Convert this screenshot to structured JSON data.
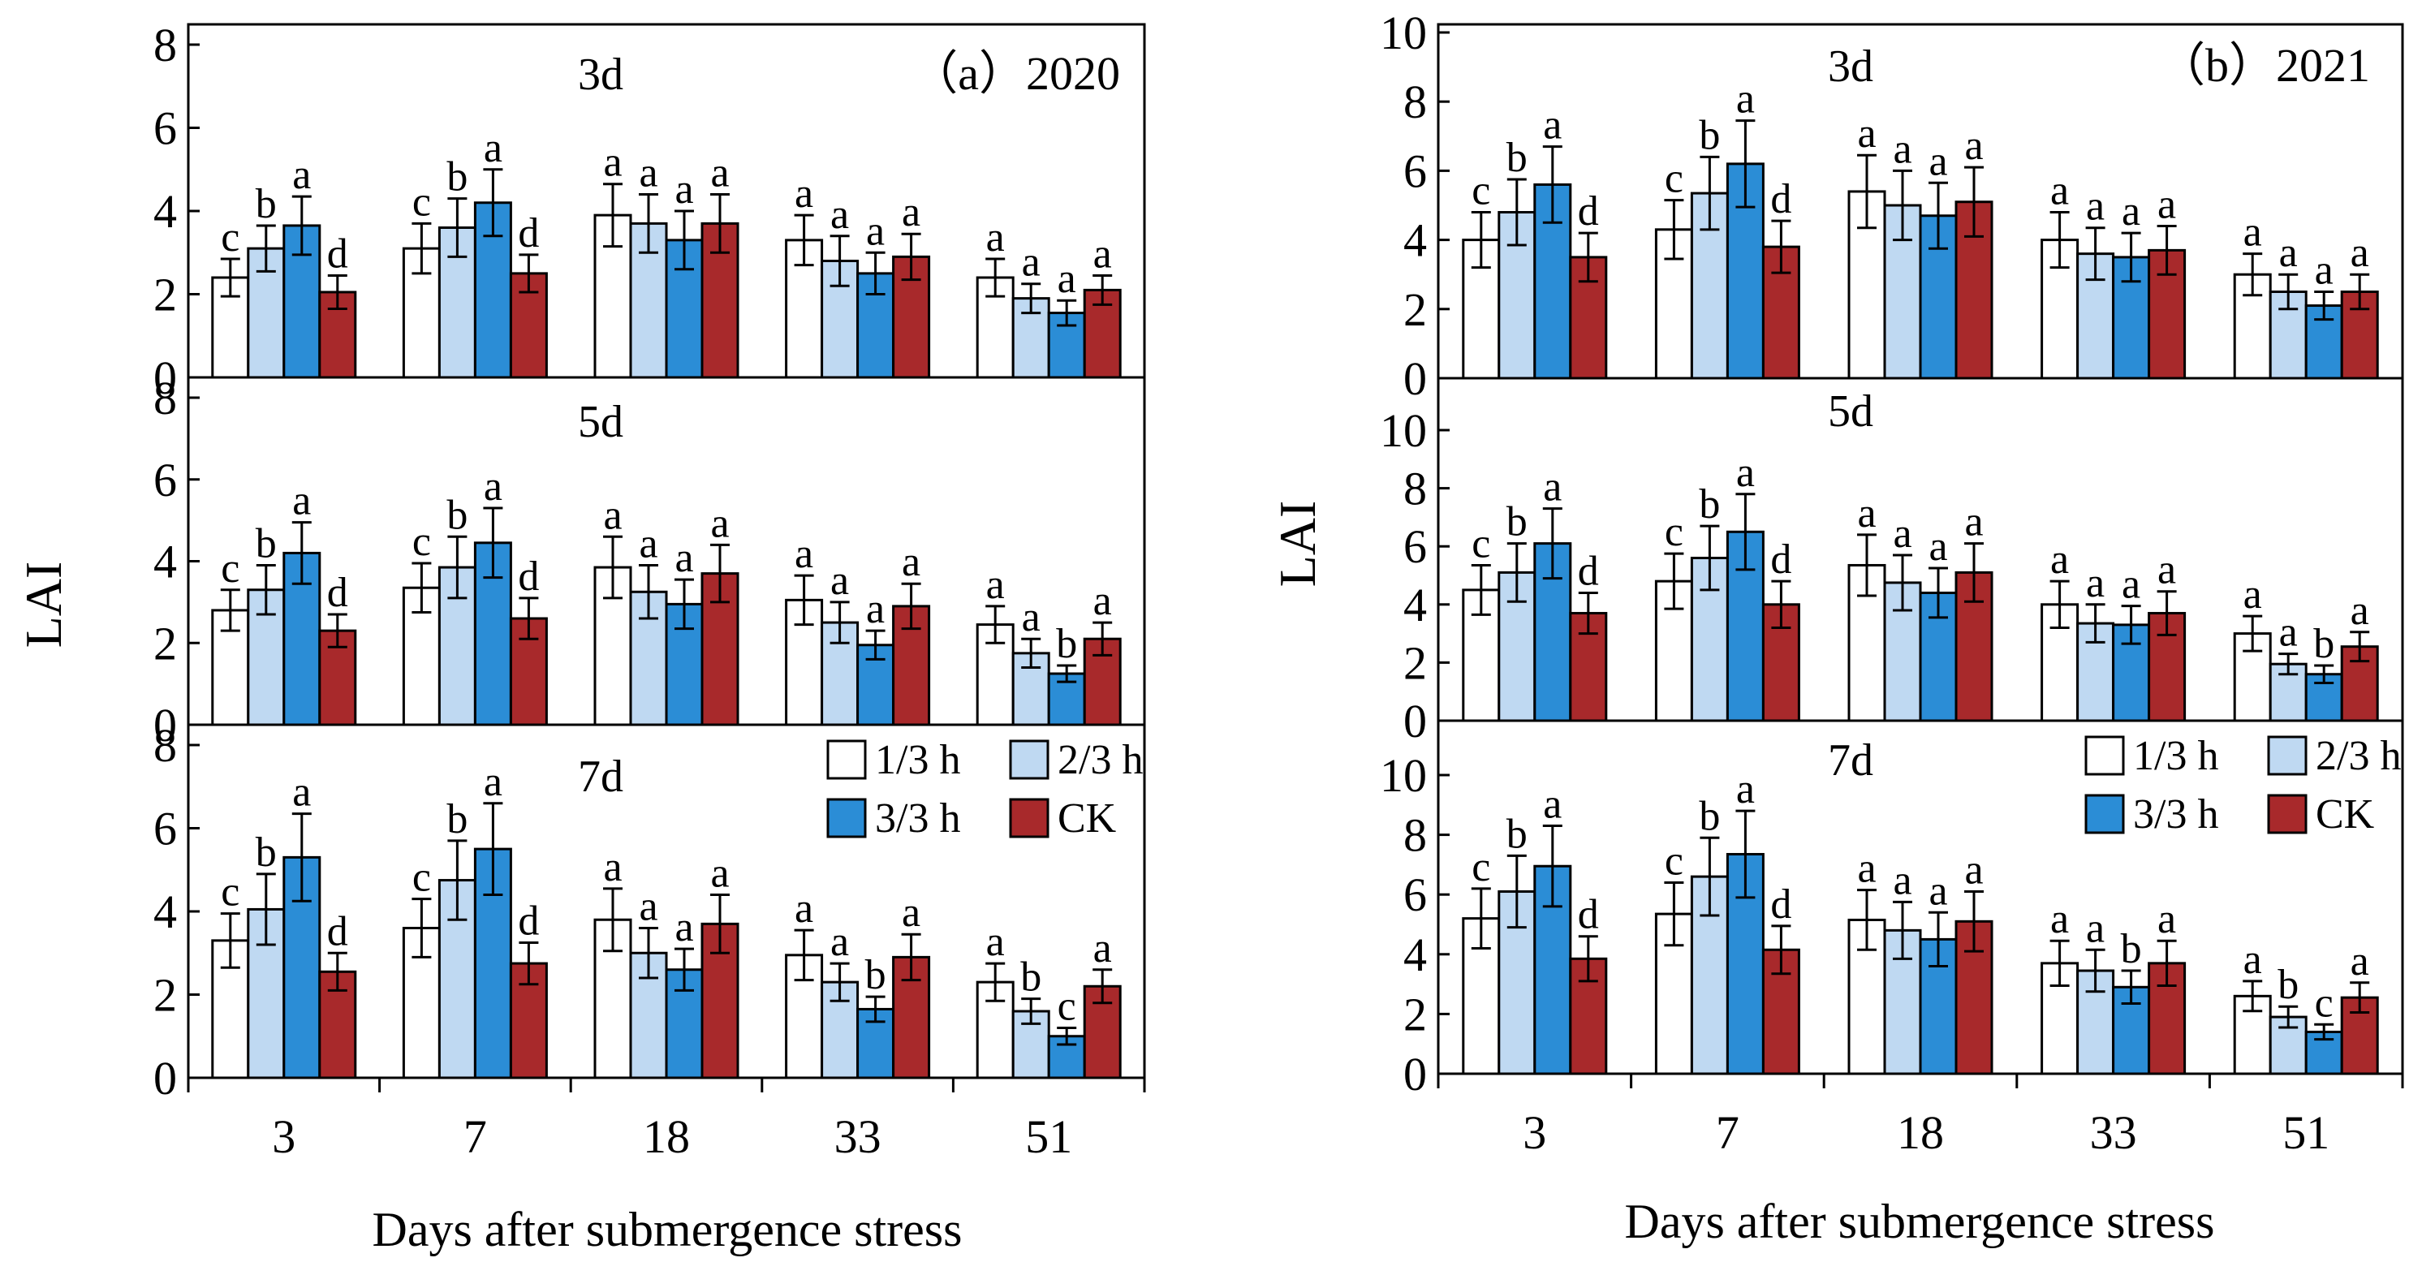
{
  "figure": {
    "ylabel": "LAI",
    "xlabel": "Days after submergence stress",
    "legend": [
      "1/3 h",
      "2/3 h",
      "3/3 h",
      "CK"
    ],
    "colors": {
      "1/3 h": "#ffffff",
      "2/3 h": "#bfd9f2",
      "3/3 h": "#2b8dd6",
      "CK": "#a8292b",
      "axis": "#000000",
      "error": "#000000"
    }
  },
  "chart_data": [
    {
      "type": "bar",
      "title": "（a）2020",
      "subtitle": "3d",
      "ylabel": "LAI",
      "xlabel": "Days after submergence stress",
      "ylim": [
        0,
        8
      ],
      "yticks": [
        0,
        2,
        4,
        6,
        8
      ],
      "categories": [
        "3",
        "7",
        "18",
        "33",
        "51"
      ],
      "series": [
        {
          "name": "1/3 h",
          "values": [
            2.4,
            3.1,
            3.9,
            3.3,
            2.4
          ],
          "errors": [
            0.45,
            0.6,
            0.75,
            0.6,
            0.45
          ],
          "letters": [
            "c",
            "c",
            "a",
            "a",
            "a"
          ]
        },
        {
          "name": "2/3 h",
          "values": [
            3.1,
            3.6,
            3.7,
            2.8,
            1.9
          ],
          "errors": [
            0.55,
            0.7,
            0.7,
            0.6,
            0.35
          ],
          "letters": [
            "b",
            "b",
            "a",
            "a",
            "a"
          ]
        },
        {
          "name": "3/3 h",
          "values": [
            3.65,
            4.2,
            3.3,
            2.5,
            1.55
          ],
          "errors": [
            0.7,
            0.8,
            0.7,
            0.5,
            0.3
          ],
          "letters": [
            "a",
            "a",
            "a",
            "a",
            "a"
          ]
        },
        {
          "name": "CK",
          "values": [
            2.05,
            2.5,
            3.7,
            2.9,
            2.1
          ],
          "errors": [
            0.4,
            0.45,
            0.7,
            0.55,
            0.35
          ],
          "letters": [
            "d",
            "d",
            "a",
            "a",
            "a"
          ]
        }
      ]
    },
    {
      "type": "bar",
      "title": "",
      "subtitle": "5d",
      "ylabel": "LAI",
      "xlabel": "Days after submergence stress",
      "ylim": [
        0,
        8
      ],
      "yticks": [
        0,
        2,
        4,
        6,
        8
      ],
      "categories": [
        "3",
        "7",
        "18",
        "33",
        "51"
      ],
      "series": [
        {
          "name": "1/3 h",
          "values": [
            2.8,
            3.35,
            3.85,
            3.05,
            2.45
          ],
          "errors": [
            0.5,
            0.6,
            0.75,
            0.6,
            0.45
          ],
          "letters": [
            "c",
            "c",
            "a",
            "a",
            "a"
          ]
        },
        {
          "name": "2/3 h",
          "values": [
            3.3,
            3.85,
            3.25,
            2.5,
            1.75
          ],
          "errors": [
            0.6,
            0.75,
            0.65,
            0.5,
            0.35
          ],
          "letters": [
            "b",
            "b",
            "a",
            "a",
            "a"
          ]
        },
        {
          "name": "3/3 h",
          "values": [
            4.2,
            4.45,
            2.95,
            1.95,
            1.25
          ],
          "errors": [
            0.75,
            0.85,
            0.6,
            0.35,
            0.2
          ],
          "letters": [
            "a",
            "a",
            "a",
            "a",
            "b"
          ]
        },
        {
          "name": "CK",
          "values": [
            2.3,
            2.6,
            3.7,
            2.9,
            2.1
          ],
          "errors": [
            0.4,
            0.5,
            0.7,
            0.55,
            0.4
          ],
          "letters": [
            "d",
            "d",
            "a",
            "a",
            "a"
          ]
        }
      ]
    },
    {
      "type": "bar",
      "title": "",
      "subtitle": "7d",
      "ylabel": "LAI",
      "xlabel": "Days after submergence stress",
      "ylim": [
        0,
        8
      ],
      "yticks": [
        0,
        2,
        4,
        6,
        8
      ],
      "categories": [
        "3",
        "7",
        "18",
        "33",
        "51"
      ],
      "series": [
        {
          "name": "1/3 h",
          "values": [
            3.3,
            3.6,
            3.8,
            2.95,
            2.3
          ],
          "errors": [
            0.65,
            0.7,
            0.75,
            0.6,
            0.45
          ],
          "letters": [
            "c",
            "c",
            "a",
            "a",
            "a"
          ]
        },
        {
          "name": "2/3 h",
          "values": [
            4.05,
            4.75,
            3.0,
            2.3,
            1.6
          ],
          "errors": [
            0.85,
            0.95,
            0.6,
            0.45,
            0.3
          ],
          "letters": [
            "b",
            "b",
            "a",
            "a",
            "b"
          ]
        },
        {
          "name": "3/3 h",
          "values": [
            5.3,
            5.5,
            2.6,
            1.65,
            1.0
          ],
          "errors": [
            1.05,
            1.1,
            0.5,
            0.3,
            0.2
          ],
          "letters": [
            "a",
            "a",
            "a",
            "b",
            "c"
          ]
        },
        {
          "name": "CK",
          "values": [
            2.55,
            2.75,
            3.7,
            2.9,
            2.2
          ],
          "errors": [
            0.45,
            0.5,
            0.7,
            0.55,
            0.4
          ],
          "letters": [
            "d",
            "d",
            "a",
            "a",
            "a"
          ]
        }
      ]
    },
    {
      "type": "bar",
      "title": "（b）2021",
      "subtitle": "3d",
      "ylabel": "LAI",
      "xlabel": "Days after submergence stress",
      "ylim": [
        0,
        10
      ],
      "yticks": [
        0,
        2,
        4,
        6,
        8,
        10
      ],
      "categories": [
        "3",
        "7",
        "18",
        "33",
        "51"
      ],
      "series": [
        {
          "name": "1/3 h",
          "values": [
            4.0,
            4.3,
            5.4,
            4.0,
            3.0
          ],
          "errors": [
            0.8,
            0.85,
            1.05,
            0.8,
            0.6
          ],
          "letters": [
            "c",
            "c",
            "a",
            "a",
            "a"
          ]
        },
        {
          "name": "2/3 h",
          "values": [
            4.8,
            5.35,
            5.0,
            3.6,
            2.5
          ],
          "errors": [
            0.95,
            1.05,
            1.0,
            0.75,
            0.5
          ],
          "letters": [
            "b",
            "b",
            "a",
            "a",
            "a"
          ]
        },
        {
          "name": "3/3 h",
          "values": [
            5.6,
            6.2,
            4.7,
            3.5,
            2.1
          ],
          "errors": [
            1.1,
            1.25,
            0.95,
            0.7,
            0.4
          ],
          "letters": [
            "a",
            "a",
            "a",
            "a",
            "a"
          ]
        },
        {
          "name": "CK",
          "values": [
            3.5,
            3.8,
            5.1,
            3.7,
            2.5
          ],
          "errors": [
            0.7,
            0.75,
            1.0,
            0.7,
            0.5
          ],
          "letters": [
            "d",
            "d",
            "a",
            "a",
            "a"
          ]
        }
      ]
    },
    {
      "type": "bar",
      "title": "",
      "subtitle": "5d",
      "ylabel": "LAI",
      "xlabel": "Days after submergence stress",
      "ylim": [
        0,
        10
      ],
      "yticks": [
        0,
        2,
        4,
        6,
        8,
        10
      ],
      "categories": [
        "3",
        "7",
        "18",
        "33",
        "51"
      ],
      "series": [
        {
          "name": "1/3 h",
          "values": [
            4.5,
            4.8,
            5.35,
            4.0,
            3.0
          ],
          "errors": [
            0.85,
            0.95,
            1.05,
            0.8,
            0.6
          ],
          "letters": [
            "c",
            "c",
            "a",
            "a",
            "a"
          ]
        },
        {
          "name": "2/3 h",
          "values": [
            5.1,
            5.6,
            4.75,
            3.35,
            1.95
          ],
          "errors": [
            1.0,
            1.1,
            0.95,
            0.65,
            0.35
          ],
          "letters": [
            "b",
            "b",
            "a",
            "a",
            "a"
          ]
        },
        {
          "name": "3/3 h",
          "values": [
            6.1,
            6.5,
            4.4,
            3.3,
            1.6
          ],
          "errors": [
            1.2,
            1.3,
            0.85,
            0.65,
            0.3
          ],
          "letters": [
            "a",
            "a",
            "a",
            "a",
            "b"
          ]
        },
        {
          "name": "CK",
          "values": [
            3.7,
            4.0,
            5.1,
            3.7,
            2.55
          ],
          "errors": [
            0.7,
            0.8,
            1.0,
            0.75,
            0.5
          ],
          "letters": [
            "d",
            "d",
            "a",
            "a",
            "a"
          ]
        }
      ]
    },
    {
      "type": "bar",
      "title": "",
      "subtitle": "7d",
      "ylabel": "LAI",
      "xlabel": "Days after submergence stress",
      "ylim": [
        0,
        10
      ],
      "yticks": [
        0,
        2,
        4,
        6,
        8,
        10
      ],
      "categories": [
        "3",
        "7",
        "18",
        "33",
        "51"
      ],
      "series": [
        {
          "name": "1/3 h",
          "values": [
            5.2,
            5.35,
            5.15,
            3.7,
            2.6
          ],
          "errors": [
            1.0,
            1.05,
            1.0,
            0.75,
            0.5
          ],
          "letters": [
            "c",
            "c",
            "a",
            "a",
            "a"
          ]
        },
        {
          "name": "2/3 h",
          "values": [
            6.1,
            6.6,
            4.8,
            3.45,
            1.9
          ],
          "errors": [
            1.2,
            1.3,
            0.95,
            0.7,
            0.35
          ],
          "letters": [
            "b",
            "b",
            "a",
            "a",
            "b"
          ]
        },
        {
          "name": "3/3 h",
          "values": [
            6.95,
            7.35,
            4.5,
            2.9,
            1.4
          ],
          "errors": [
            1.35,
            1.45,
            0.9,
            0.55,
            0.25
          ],
          "letters": [
            "a",
            "a",
            "a",
            "b",
            "c"
          ]
        },
        {
          "name": "CK",
          "values": [
            3.85,
            4.15,
            5.1,
            3.7,
            2.55
          ],
          "errors": [
            0.75,
            0.8,
            1.0,
            0.75,
            0.5
          ],
          "letters": [
            "d",
            "d",
            "a",
            "a",
            "a"
          ]
        }
      ]
    }
  ]
}
